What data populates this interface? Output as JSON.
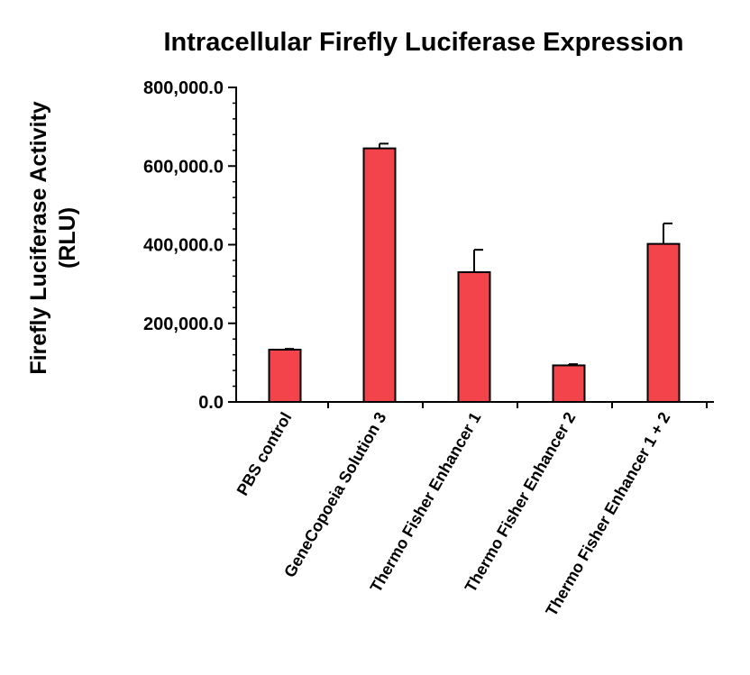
{
  "chart_data": {
    "type": "bar",
    "title": "Intracellular Firefly Luciferase Expression",
    "ylabel_line1": "Firefly Luciferase Activity",
    "ylabel_line2": "(RLU)",
    "xlabel": "",
    "categories": [
      "PBS control",
      "GeneCopoeia Solution 3",
      "Thermo Fisher Enhancer 1",
      "Thermo Fisher Enhancer 2",
      "Thermo Fisher Enhancer 1 + 2"
    ],
    "values": [
      133000,
      645000,
      330000,
      93000,
      402000
    ],
    "errors": [
      2000,
      12000,
      57000,
      3000,
      52000
    ],
    "ylim": [
      0,
      800000
    ],
    "yticks": [
      0,
      200000,
      400000,
      600000,
      800000
    ],
    "ytick_labels": [
      "0.0",
      "200,000.0",
      "400,000.0",
      "600,000.0",
      "800,000.0"
    ],
    "bar_color": "#f2444a",
    "grid": false,
    "legend": "none"
  }
}
